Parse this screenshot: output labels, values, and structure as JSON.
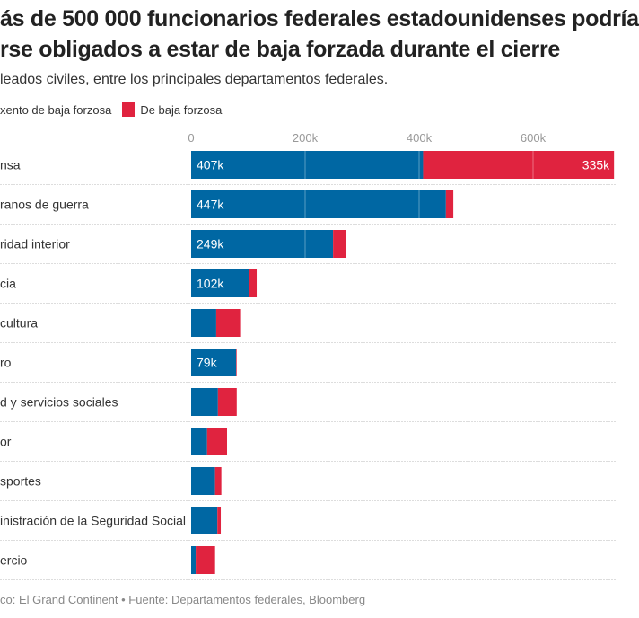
{
  "title": {
    "line1": "ás de 500 000 funcionarios federales estadounidenses podría",
    "line2": "rse obligados a estar de baja forzada durante el cierre"
  },
  "subtitle": "leados civiles, entre los principales departamentos federales.",
  "legend": [
    {
      "label": "xento de baja forzosa",
      "color": "#0067a3"
    },
    {
      "label": "De baja forzosa",
      "color": "#e0233f"
    }
  ],
  "footer": "co: El Grand Continent • Fuente: Departamentos federales, Bloomberg",
  "chart_data": {
    "type": "bar",
    "orientation": "horizontal",
    "stacked": true,
    "categories": [
      "nsa",
      "ranos de guerra",
      "ridad interior",
      "cia",
      "cultura",
      "ro",
      "d y servicios sociales",
      "or",
      "sportes",
      "inistración de la Seguridad Social",
      "ercio"
    ],
    "series": [
      {
        "name": "xento de baja forzosa",
        "color": "#0067a3",
        "values": [
          407,
          447,
          249,
          102,
          44,
          79,
          47,
          28,
          42,
          46,
          8
        ],
        "labels": [
          "407k",
          "447k",
          "249k",
          "102k",
          "",
          "79k",
          "",
          "",
          "",
          "",
          ""
        ]
      },
      {
        "name": "De baja forzosa",
        "color": "#e0233f",
        "values": [
          335,
          13,
          22,
          13,
          42,
          1,
          33,
          35,
          11,
          6,
          34
        ],
        "labels": [
          "335k",
          "",
          "",
          "",
          "",
          "",
          "",
          "",
          "",
          "",
          ""
        ]
      }
    ],
    "xticks": [
      {
        "v": 0,
        "label": "0"
      },
      {
        "v": 200,
        "label": "200k"
      },
      {
        "v": 400,
        "label": "400k"
      },
      {
        "v": 600,
        "label": "600k"
      }
    ],
    "xlim": [
      0,
      750
    ],
    "grid": true,
    "legend_position": "top-left"
  }
}
